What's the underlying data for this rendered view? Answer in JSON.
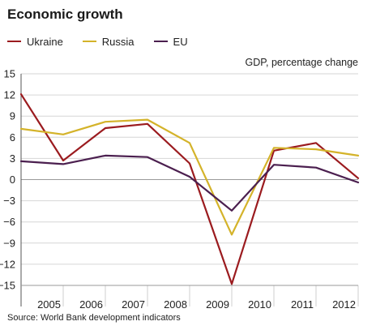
{
  "chart_data": {
    "type": "line",
    "title": "Economic growth",
    "unit_label": "GDP, percentage change",
    "source": "Source: World Bank development indicators",
    "x": [
      2004,
      2005,
      2006,
      2007,
      2008,
      2009,
      2010,
      2011,
      2012
    ],
    "x_tick_labels": [
      "2005",
      "2006",
      "2007",
      "2008",
      "2009",
      "2010",
      "2011",
      "2012"
    ],
    "y_ticks": [
      15,
      12,
      9,
      6,
      3,
      0,
      -3,
      -6,
      -9,
      -12,
      -15
    ],
    "ylim": [
      -15,
      15
    ],
    "xlim": [
      2004,
      2012
    ],
    "grid": "horizontal",
    "legend_position": "top-left",
    "series": [
      {
        "name": "Ukraine",
        "color": "#9b1b1f",
        "values": [
          12.1,
          2.7,
          7.3,
          7.9,
          2.3,
          -14.8,
          4.1,
          5.2,
          0.2
        ]
      },
      {
        "name": "Russia",
        "color": "#d4b32a",
        "values": [
          7.2,
          6.4,
          8.2,
          8.5,
          5.2,
          -7.8,
          4.5,
          4.3,
          3.4
        ]
      },
      {
        "name": "EU",
        "color": "#4b1f4f",
        "values": [
          2.6,
          2.2,
          3.4,
          3.2,
          0.4,
          -4.4,
          2.1,
          1.7,
          -0.4
        ]
      }
    ]
  }
}
